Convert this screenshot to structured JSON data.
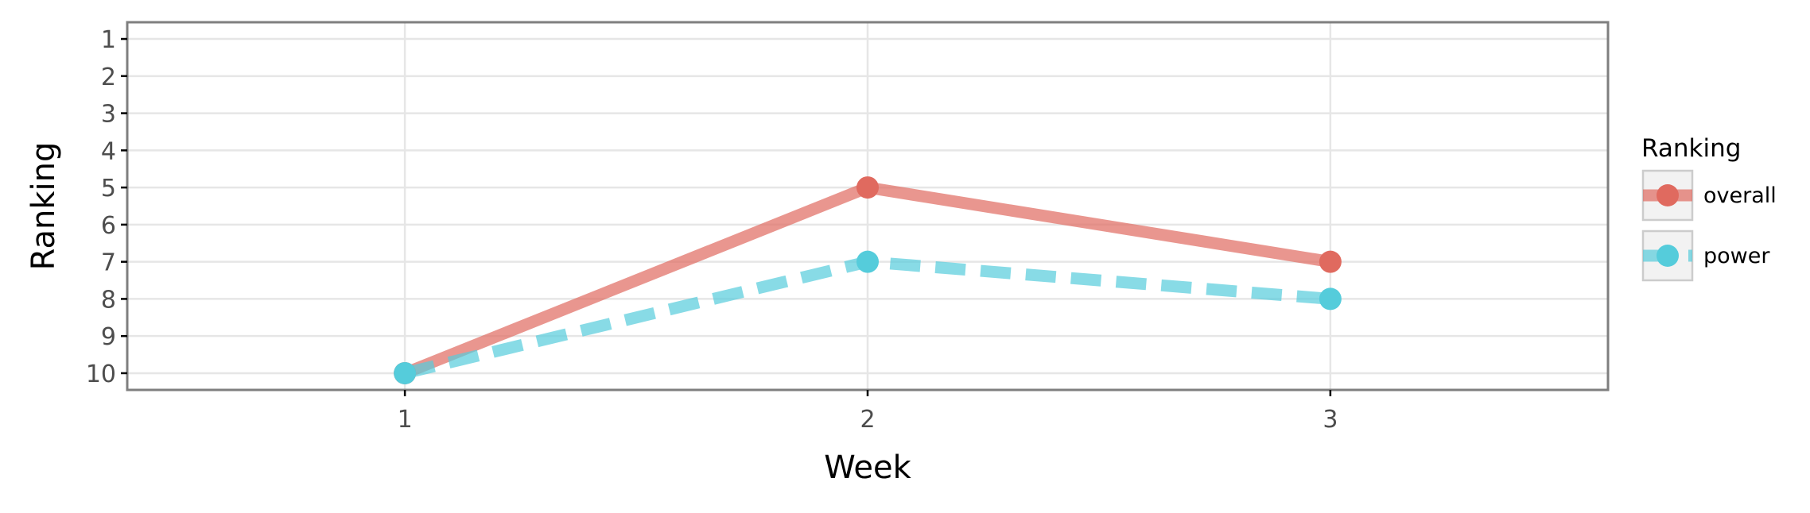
{
  "chart_data": {
    "type": "line",
    "xlabel": "Week",
    "ylabel": "Ranking",
    "x": [
      1,
      2,
      3
    ],
    "x_ticks": [
      "1",
      "2",
      "3"
    ],
    "xlim": [
      0.4,
      3.6
    ],
    "ylim": [
      10.45,
      0.55
    ],
    "y_ticks": [
      "1",
      "2",
      "3",
      "4",
      "5",
      "6",
      "7",
      "8",
      "9",
      "10"
    ],
    "y_axis_reversed": true,
    "grid": true,
    "legend_title": "Ranking",
    "legend_position": "right",
    "series": [
      {
        "name": "overall",
        "values": [
          10,
          5,
          7
        ],
        "color": "#E06A5F",
        "line_style": "solid"
      },
      {
        "name": "power",
        "values": [
          10,
          7,
          8
        ],
        "color": "#55CCDB",
        "line_style": "dashed"
      }
    ]
  }
}
